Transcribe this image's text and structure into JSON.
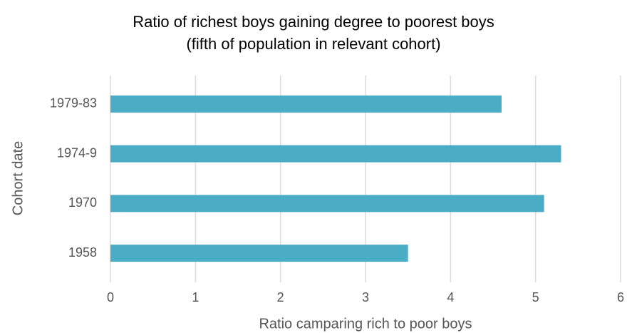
{
  "chart_data": {
    "type": "bar",
    "orientation": "horizontal",
    "title": "Ratio of richest boys gaining degree to poorest boys",
    "subtitle": "(fifth of population in relevant cohort)",
    "x_label": "Ratio camparing rich to poor boys",
    "y_label": "Cohort date",
    "categories": [
      "1979-83",
      "1974-9",
      "1970",
      "1958"
    ],
    "values": [
      4.6,
      5.3,
      5.1,
      3.5
    ],
    "color": "#4bacc6",
    "xlim": [
      0,
      6
    ],
    "xticks": [
      0,
      1,
      2,
      3,
      4,
      5,
      6
    ],
    "grid": true
  }
}
